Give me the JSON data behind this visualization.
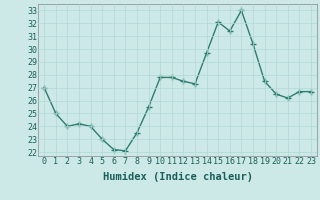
{
  "x": [
    0,
    1,
    2,
    3,
    4,
    5,
    6,
    7,
    8,
    9,
    10,
    11,
    12,
    13,
    14,
    15,
    16,
    17,
    18,
    19,
    20,
    21,
    22,
    23
  ],
  "y": [
    27.0,
    25.0,
    24.0,
    24.2,
    24.0,
    23.0,
    22.2,
    22.1,
    23.5,
    25.5,
    27.8,
    27.8,
    27.5,
    27.3,
    29.7,
    32.1,
    31.4,
    33.0,
    30.4,
    27.5,
    26.5,
    26.2,
    26.7,
    26.7
  ],
  "line_color": "#2e7d6e",
  "marker": "+",
  "marker_size": 4,
  "bg_color": "#cce9e8",
  "grid_color": "#b0d8d6",
  "xlabel": "Humidex (Indice chaleur)",
  "ylabel_ticks": [
    22,
    23,
    24,
    25,
    26,
    27,
    28,
    29,
    30,
    31,
    32,
    33
  ],
  "xlim": [
    -0.5,
    23.5
  ],
  "ylim": [
    21.7,
    33.5
  ],
  "xlabel_fontsize": 7.5,
  "tick_fontsize": 6,
  "line_width": 1.0
}
